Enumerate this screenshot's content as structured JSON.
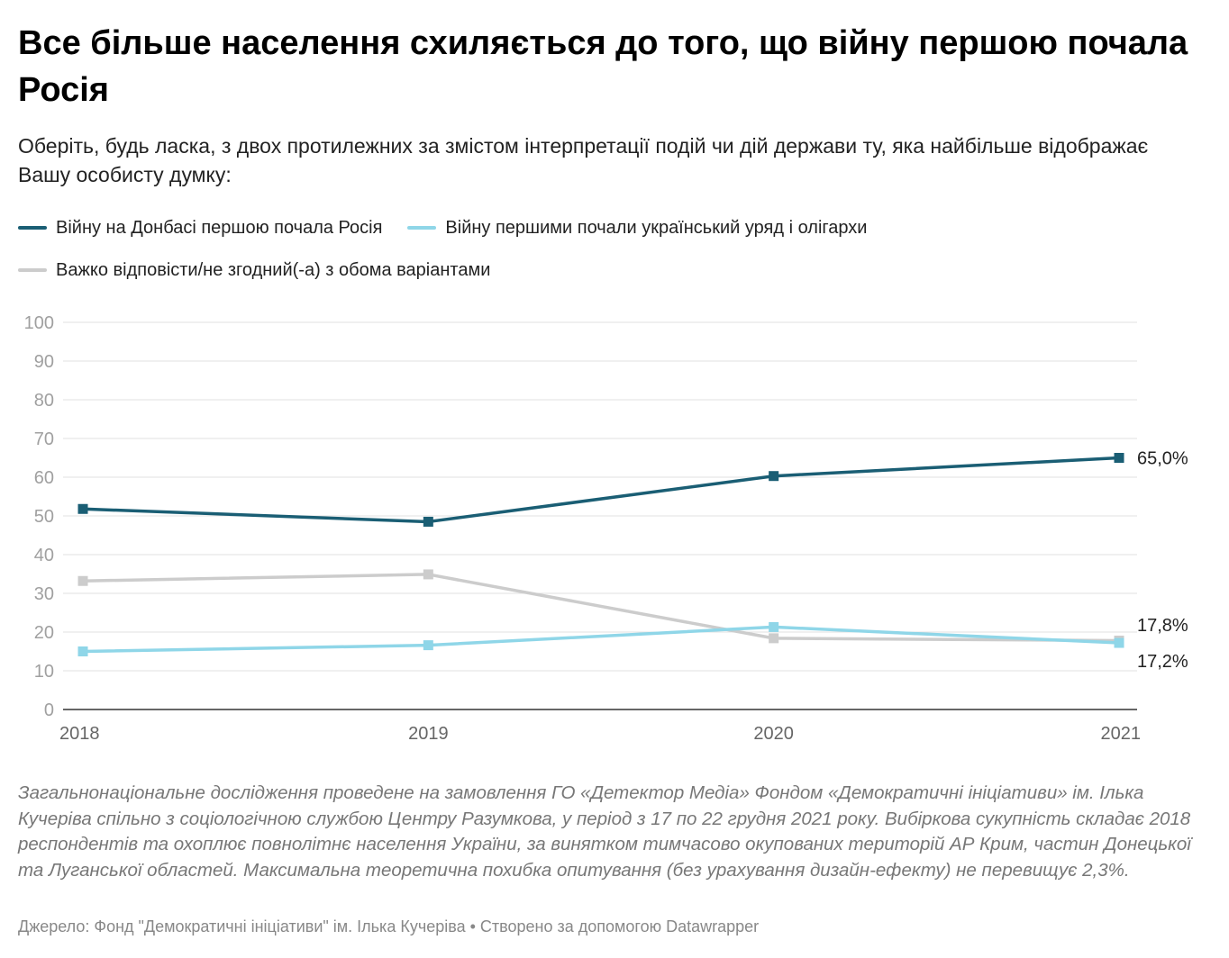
{
  "header": {
    "title": "Все більше населення схиляється до того, що війну першою почала Росія",
    "subtitle": "Оберіть, будь ласка, з двох протилежних за змістом інтерпретації подій чи дій держави ту, яка найбільше відображає Вашу особисту думку:"
  },
  "legend": [
    {
      "label": "Війну на Донбасі першою почала Росія",
      "color": "#1a5e74"
    },
    {
      "label": "Війну першими почали український уряд і олігархи",
      "color": "#8fd6e8"
    },
    {
      "label": "Важко відповісти/не згодний(-а) з обома варіантами",
      "color": "#cccccc"
    }
  ],
  "chart_data": {
    "type": "line",
    "x": [
      "2018",
      "2019",
      "2020",
      "2021"
    ],
    "series": [
      {
        "name": "Війну на Донбасі першою почала Росія",
        "color": "#1a5e74",
        "values": [
          51.8,
          48.5,
          60.3,
          65.0
        ],
        "end_label": "65,0%"
      },
      {
        "name": "Війну першими почали український уряд і олігархи",
        "color": "#8fd6e8",
        "values": [
          15.0,
          16.6,
          21.3,
          17.2
        ],
        "end_label": "17,2%"
      },
      {
        "name": "Важко відповісти/не згодний(-а) з обома варіантами",
        "color": "#cccccc",
        "values": [
          33.2,
          34.9,
          18.4,
          17.8
        ],
        "end_label": "17,8%"
      }
    ],
    "ylim": [
      0,
      100
    ],
    "yticks": [
      0,
      10,
      20,
      30,
      40,
      50,
      60,
      70,
      80,
      90,
      100
    ],
    "grid": true,
    "legend_position": "top-left"
  },
  "footer": {
    "notes": "Загальнонаціональне дослідження проведене на замовлення ГО «Детектор Медіа» Фондом «Демократичні ініціативи» ім. Ілька Кучеріва спільно з соціологічною службою Центру Разумкова, у період з 17 по 22 грудня 2021 року. Вибіркова сукупність складає 2018 респондентів та охоплює повнолітнє населення України, за винятком тимчасово окупованих територій АР Крим, частин Донецької та Луганської областей. Максимальна теоретична похибка опитування (без урахування дизайн-ефекту) не перевищує 2,3%.",
    "source": "Джерело: Фонд \"Демократичні ініціативи\" ім. Ілька Кучеріва • Створено за допомогою Datawrapper"
  }
}
